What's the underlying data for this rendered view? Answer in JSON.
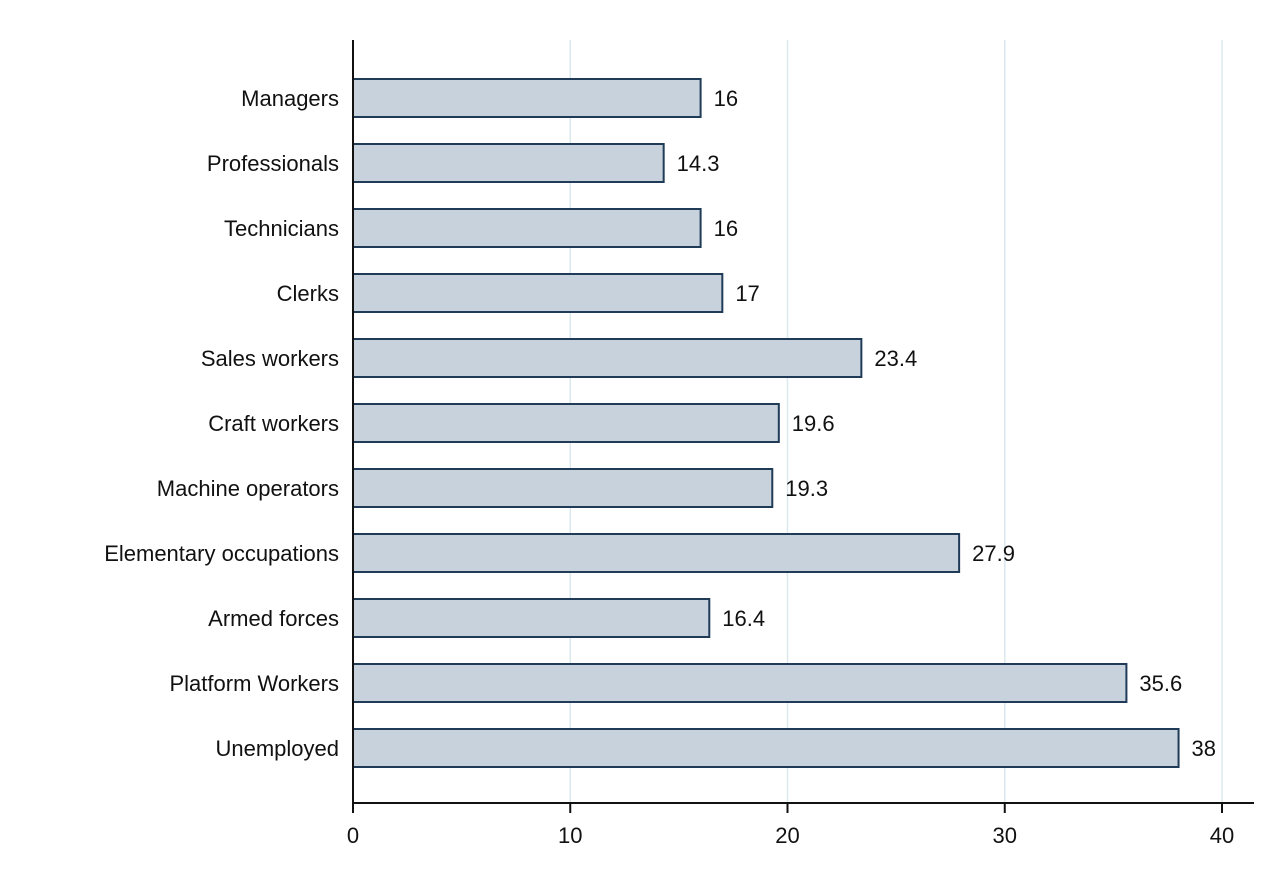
{
  "chart_data": {
    "type": "bar",
    "orientation": "horizontal",
    "categories": [
      "Managers",
      "Professionals",
      "Technicians",
      "Clerks",
      "Sales workers",
      "Craft workers",
      "Machine operators",
      "Elementary occupations",
      "Armed forces",
      "Platform Workers",
      "Unemployed"
    ],
    "values": [
      16,
      14.3,
      16,
      17,
      23.4,
      19.6,
      19.3,
      27.9,
      16.4,
      35.6,
      38
    ],
    "value_labels": [
      "16",
      "14.3",
      "16",
      "17",
      "23.4",
      "19.6",
      "19.3",
      "27.9",
      "16.4",
      "35.6",
      "38"
    ],
    "xlim": [
      0,
      40
    ],
    "xticks": [
      0,
      10,
      20,
      30,
      40
    ],
    "grid": true,
    "legend": "none",
    "colors": {
      "bar_fill": "#c8d2dc",
      "bar_stroke": "#1f3b57",
      "grid": "#dbe9ef"
    }
  }
}
